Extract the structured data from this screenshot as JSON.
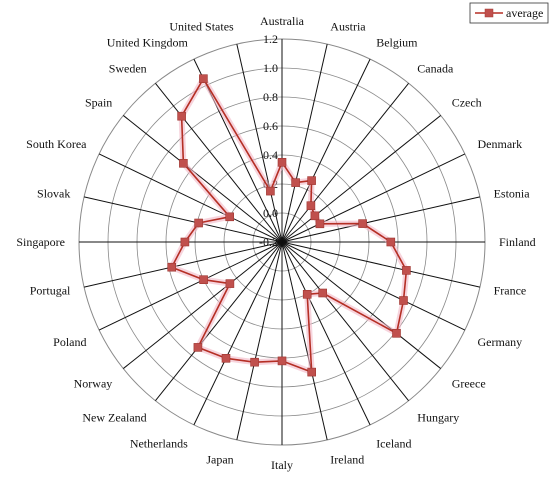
{
  "chart_data": {
    "type": "radar",
    "title": "",
    "categories": [
      "Australia",
      "Austria",
      "Belgium",
      "Canada",
      "Czech",
      "Denmark",
      "Estonia",
      "Finland",
      "France",
      "Germany",
      "Greece",
      "Hungary",
      "Iceland",
      "Ireland",
      "Italy",
      "Japan",
      "Netherlands",
      "New Zealand",
      "Norway",
      "Poland",
      "Portugal",
      "Singapore",
      "Slovak",
      "South Korea",
      "Spain",
      "Sweden",
      "United Kingdom",
      "United States"
    ],
    "series": [
      {
        "name": "average",
        "values": [
          0.35,
          0.22,
          0.27,
          0.12,
          0.09,
          0.09,
          0.37,
          0.55,
          0.68,
          0.73,
          0.81,
          0.25,
          0.2,
          0.72,
          0.62,
          0.65,
          0.69,
          0.73,
          0.26,
          0.4,
          0.58,
          0.47,
          0.39,
          0.2,
          0.67,
          0.91,
          1.05,
          0.16
        ],
        "color": "#b52f25",
        "marker_color": "#c0504d"
      }
    ],
    "rlim": [
      -0.2,
      1.2
    ],
    "ticks": [
      "-0.2",
      "0.0",
      "0.2",
      "0.4",
      "0.6",
      "0.8",
      "1.0",
      "1.2"
    ],
    "grid": true,
    "legend_position": "top-right"
  }
}
